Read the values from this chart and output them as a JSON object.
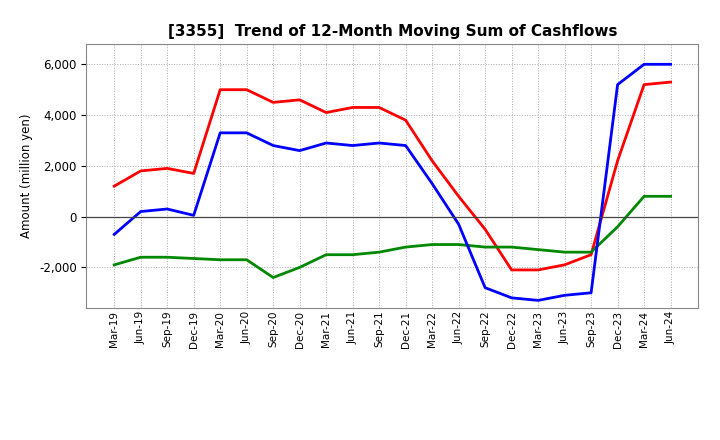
{
  "title": "[3355]  Trend of 12-Month Moving Sum of Cashflows",
  "ylabel": "Amount (million yen)",
  "x_labels": [
    "Mar-19",
    "Jun-19",
    "Sep-19",
    "Dec-19",
    "Mar-20",
    "Jun-20",
    "Sep-20",
    "Dec-20",
    "Mar-21",
    "Jun-21",
    "Sep-21",
    "Dec-21",
    "Mar-22",
    "Jun-22",
    "Sep-22",
    "Dec-22",
    "Mar-23",
    "Jun-23",
    "Sep-23",
    "Dec-23",
    "Mar-24",
    "Jun-24"
  ],
  "operating": [
    1200,
    1800,
    1900,
    1700,
    5000,
    5000,
    4500,
    4600,
    4100,
    4300,
    4300,
    3800,
    2200,
    800,
    -500,
    -2100,
    -2100,
    -1900,
    -1500,
    2200,
    5200,
    5300
  ],
  "investing": [
    -1900,
    -1600,
    -1600,
    -1650,
    -1700,
    -1700,
    -2400,
    -2000,
    -1500,
    -1500,
    -1400,
    -1200,
    -1100,
    -1100,
    -1200,
    -1200,
    -1300,
    -1400,
    -1400,
    -400,
    800,
    800
  ],
  "free": [
    -700,
    200,
    300,
    50,
    3300,
    3300,
    2800,
    2600,
    2900,
    2800,
    2900,
    2800,
    1300,
    -300,
    -2800,
    -3200,
    -3300,
    -3100,
    -3000,
    5200,
    6000,
    6000
  ],
  "ylim": [
    -3600,
    6800
  ],
  "yticks": [
    -2000,
    0,
    2000,
    4000,
    6000
  ],
  "colors": {
    "operating": "#ff0000",
    "investing": "#008800",
    "free": "#0000ff"
  },
  "bg_color": "#ffffff",
  "grid_color": "#aaaaaa",
  "linewidth": 2.0
}
